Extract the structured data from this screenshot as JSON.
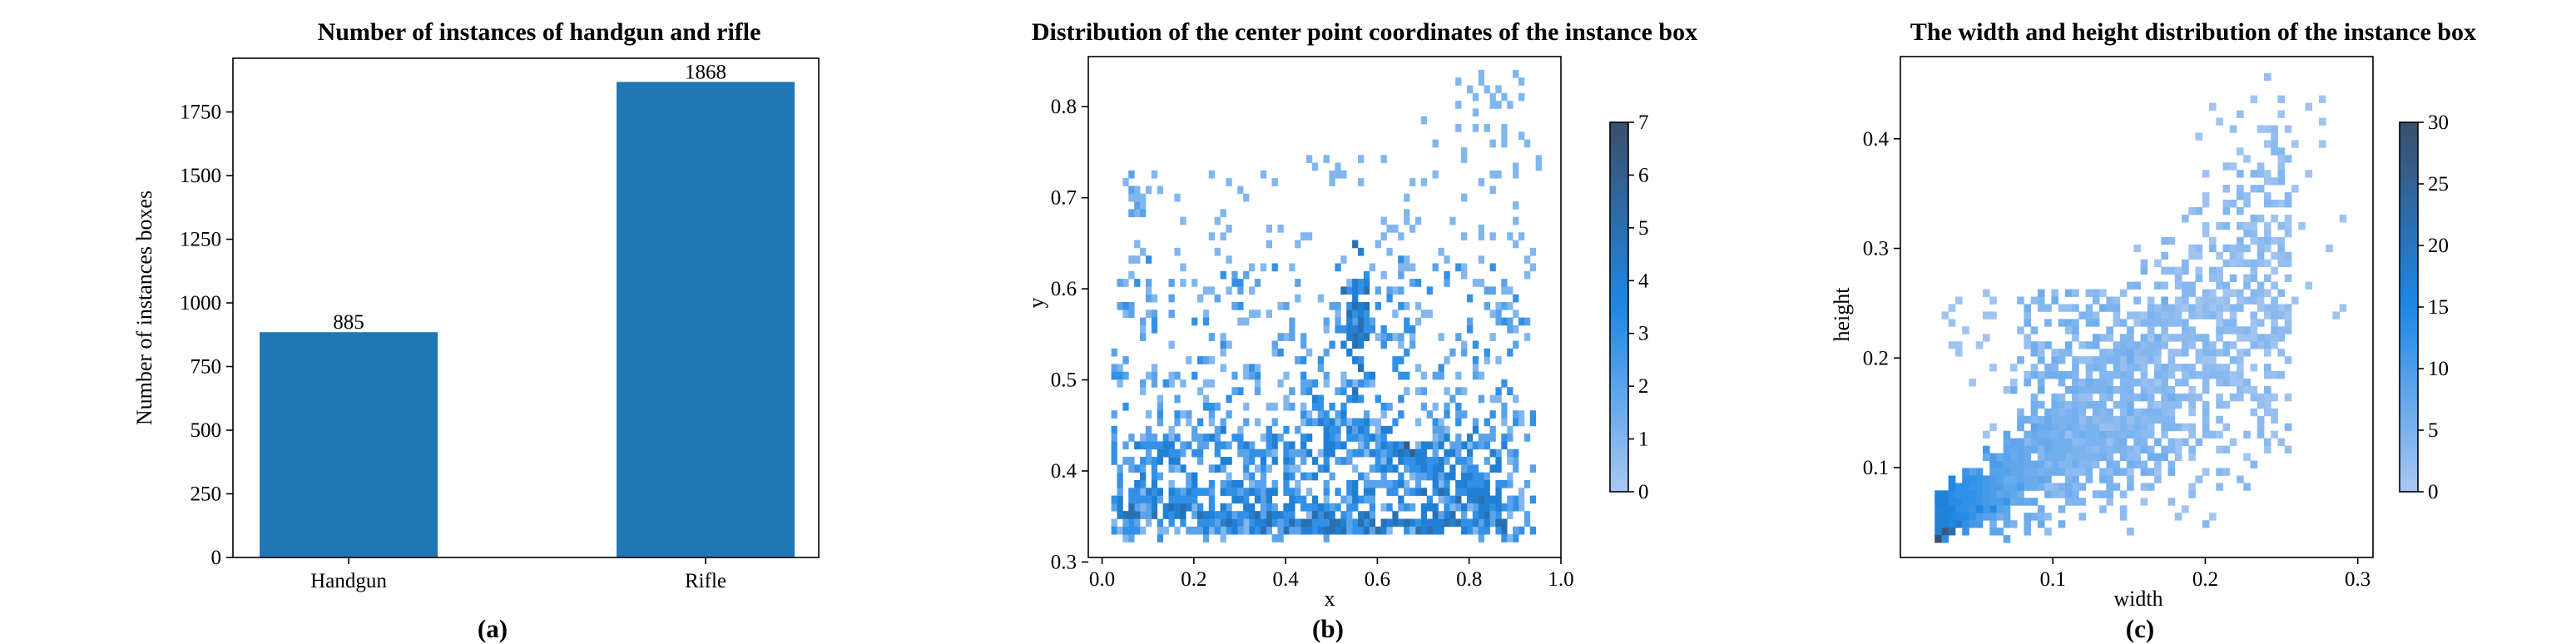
{
  "chart_data": [
    {
      "type": "bar",
      "title": "Number of instances of handgun and rifle",
      "categories": [
        "Handgun",
        "Rifle"
      ],
      "values": [
        885,
        1868
      ],
      "value_labels": [
        "885",
        "1868"
      ],
      "xlabel": "",
      "ylabel": "Number of instances boxes",
      "ylim": [
        0,
        1961
      ],
      "yticks": [
        0,
        250,
        500,
        750,
        1000,
        1250,
        1500,
        1750
      ],
      "ytick_labels": [
        "0",
        "250",
        "500",
        "750",
        "1000",
        "1250",
        "1500",
        "1750"
      ],
      "color": "#1f77b4",
      "subfigure_label": "(a)"
    },
    {
      "type": "heatmap",
      "title": "Distribution of the center point coordinates of the instance box",
      "xlabel": "x",
      "ylabel": "y",
      "xlim": [
        -0.03,
        1.0
      ],
      "ylim": [
        0.305,
        0.855
      ],
      "xticks": [
        0.0,
        0.2,
        0.4,
        0.6,
        0.8,
        1.0
      ],
      "xtick_labels": [
        "0.0",
        "0.2",
        "0.4",
        "0.6",
        "0.8",
        "1.0"
      ],
      "yticks": [
        0.3,
        0.4,
        0.5,
        0.6,
        0.7,
        0.8
      ],
      "ytick_labels": [
        "0.3",
        "0.4",
        "0.5",
        "0.6",
        "0.7",
        "0.8"
      ],
      "grid": false,
      "colorbar": {
        "range": [
          0,
          7
        ],
        "ticks": [
          0,
          1,
          2,
          3,
          4,
          5,
          6,
          7
        ],
        "tick_labels": [
          "0",
          "1",
          "2",
          "3",
          "4",
          "5",
          "6",
          "7"
        ],
        "colors": [
          "#a9c8f2",
          "#1e88e5",
          "#3b4f6b"
        ]
      },
      "bin_size": [
        0.0125,
        0.0085
      ],
      "approximate_points": [
        {
          "x": 0.55,
          "y": 0.58,
          "count": 5
        },
        {
          "x": 0.57,
          "y": 0.56,
          "count": 5
        },
        {
          "x": 0.56,
          "y": 0.54,
          "count": 4
        },
        {
          "x": 0.66,
          "y": 0.43,
          "count": 6
        },
        {
          "x": 0.68,
          "y": 0.42,
          "count": 6
        },
        {
          "x": 0.65,
          "y": 0.42,
          "count": 5
        },
        {
          "x": 0.7,
          "y": 0.38,
          "count": 5
        },
        {
          "x": 0.74,
          "y": 0.38,
          "count": 5
        },
        {
          "x": 0.78,
          "y": 0.37,
          "count": 5
        },
        {
          "x": 0.82,
          "y": 0.37,
          "count": 5
        },
        {
          "x": 0.86,
          "y": 0.38,
          "count": 4
        },
        {
          "x": 0.5,
          "y": 0.34,
          "count": 5
        },
        {
          "x": 0.56,
          "y": 0.34,
          "count": 5
        },
        {
          "x": 0.62,
          "y": 0.34,
          "count": 4
        },
        {
          "x": 0.28,
          "y": 0.35,
          "count": 4
        },
        {
          "x": 0.22,
          "y": 0.35,
          "count": 4
        },
        {
          "x": 0.14,
          "y": 0.36,
          "count": 4
        },
        {
          "x": 0.38,
          "y": 0.44,
          "count": 4
        },
        {
          "x": 0.44,
          "y": 0.44,
          "count": 3
        },
        {
          "x": 0.16,
          "y": 0.42,
          "count": 3
        },
        {
          "x": 0.06,
          "y": 0.38,
          "count": 3
        },
        {
          "x": 0.1,
          "y": 0.37,
          "count": 3
        },
        {
          "x": 0.32,
          "y": 0.4,
          "count": 3
        },
        {
          "x": 0.42,
          "y": 0.37,
          "count": 4
        },
        {
          "x": 0.6,
          "y": 0.4,
          "count": 3
        },
        {
          "x": 0.72,
          "y": 0.41,
          "count": 3
        },
        {
          "x": 0.8,
          "y": 0.39,
          "count": 4
        },
        {
          "x": 0.84,
          "y": 0.36,
          "count": 4
        }
      ],
      "subfigure_label": "(b)"
    },
    {
      "type": "heatmap",
      "title": "The width and height distribution of the instance box",
      "xlabel": "width",
      "ylabel": "height",
      "xlim": [
        0.0,
        0.31
      ],
      "ylim": [
        0.018,
        0.475
      ],
      "xticks": [
        0.1,
        0.2,
        0.3
      ],
      "xtick_labels": [
        "0.1",
        "0.2",
        "0.3"
      ],
      "yticks": [
        0.1,
        0.2,
        0.3,
        0.4
      ],
      "ytick_labels": [
        "0.1",
        "0.2",
        "0.3",
        "0.4"
      ],
      "grid": false,
      "colorbar": {
        "range": [
          0,
          30
        ],
        "ticks": [
          0,
          5,
          10,
          15,
          20,
          25,
          30
        ],
        "tick_labels": [
          "0",
          "5",
          "10",
          "15",
          "20",
          "25",
          "30"
        ],
        "colors": [
          "#a9c8f2",
          "#1e88e5",
          "#3b4f6b"
        ]
      },
      "bin_size": [
        0.0045,
        0.0068
      ],
      "approximate_points": [
        {
          "x": 0.025,
          "y": 0.035,
          "count": 30
        },
        {
          "x": 0.03,
          "y": 0.04,
          "count": 28
        },
        {
          "x": 0.035,
          "y": 0.045,
          "count": 22
        },
        {
          "x": 0.04,
          "y": 0.05,
          "count": 18
        },
        {
          "x": 0.05,
          "y": 0.06,
          "count": 15
        },
        {
          "x": 0.06,
          "y": 0.065,
          "count": 14
        },
        {
          "x": 0.07,
          "y": 0.07,
          "count": 12
        },
        {
          "x": 0.08,
          "y": 0.08,
          "count": 10
        },
        {
          "x": 0.09,
          "y": 0.09,
          "count": 8
        },
        {
          "x": 0.11,
          "y": 0.12,
          "count": 6
        },
        {
          "x": 0.13,
          "y": 0.15,
          "count": 5
        },
        {
          "x": 0.15,
          "y": 0.18,
          "count": 4
        },
        {
          "x": 0.16,
          "y": 0.22,
          "count": 5
        },
        {
          "x": 0.14,
          "y": 0.13,
          "count": 5
        },
        {
          "x": 0.18,
          "y": 0.16,
          "count": 3
        }
      ],
      "subfigure_label": "(c)"
    }
  ]
}
